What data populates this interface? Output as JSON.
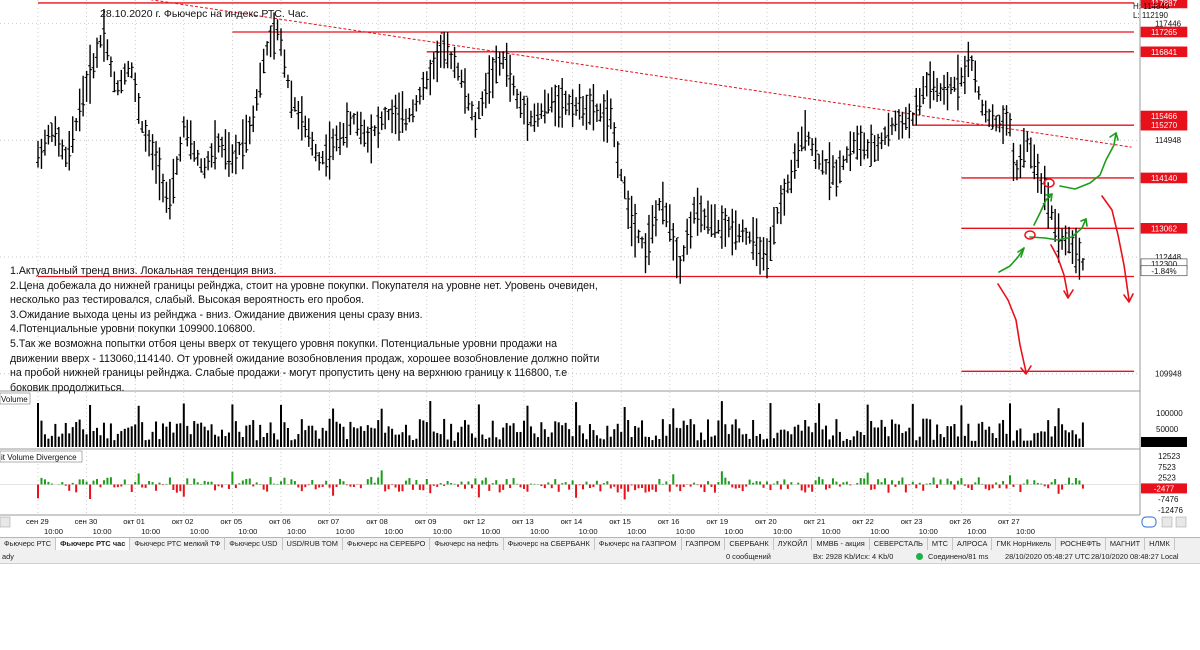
{
  "chart_title": "28.10.2020 г. Фьючерс  на индекс РТС. Час.",
  "header_values": {
    "high": "H: 114840",
    "low": "L: 112190"
  },
  "annotation_lines": [
    "1.Актуальный тренд вниз. Локальная тенденция вниз.",
    "2.Цена добежала до нижней границы рейнджа, стоит на уровне покупки. Покупателя на уровне нет. Уровень очевиден,",
    "несколько раз тестировался, слабый. Высокая вероятность его пробоя.",
    "3.Ожидание выхода цены из рейнджа - вниз. Ожидание движения цены сразу вниз.",
    "4.Потенциальные уровни покупки 109900.106800.",
    "5.Так же возможна попытки отбоя цены вверх от текущего уровня покупки. Потенциальные уровни продажи на",
    "движении вверх - 113060,114140. От уровней ожидание возобновления продаж, хорошее возобновление должно пойти",
    "на пробой нижней границы рейнджа. Слабые продажи - могут пропустить цену на верхнюю границу к 116800, т.е",
    "боковик продолжиться."
  ],
  "chart_data": {
    "type": "candlestick",
    "title": "28.10.2020 г. Фьючерс  на индекс РТС. Час.",
    "ylim": [
      109600,
      117950
    ],
    "price_axis_ticks": [
      "117446",
      "114948",
      "112448",
      "109948"
    ],
    "level_labels": [
      {
        "price": 117887,
        "label": "117887",
        "color": "#e8101a"
      },
      {
        "price": 117265,
        "label": "117265",
        "color": "#e8101a"
      },
      {
        "price": 116841,
        "label": "116841",
        "color": "#e8101a"
      },
      {
        "price": 115466,
        "label": "115466",
        "color": "#e8101a"
      },
      {
        "price": 115270,
        "label": "115270",
        "color": "#e8101a"
      },
      {
        "price": 114140,
        "label": "114140",
        "color": "#e8101a"
      },
      {
        "price": 113062,
        "label": "113062",
        "color": "#e8101a"
      },
      {
        "price": 112300,
        "label": "112300",
        "color": "#ffffff"
      },
      {
        "price": 112153,
        "label": "-1.84%",
        "color": "#ffffff"
      }
    ],
    "last_price": 112300,
    "horizontal_levels": [
      {
        "price": 117887,
        "from_day": 0
      },
      {
        "price": 117265,
        "from_day": 4
      },
      {
        "price": 116841,
        "from_day": 8
      },
      {
        "price": 115270,
        "from_day": 18
      },
      {
        "price": 114140,
        "from_day": 19
      },
      {
        "price": 113062,
        "from_day": 19
      },
      {
        "price": 112030,
        "from_day": 0
      },
      {
        "price": 110000,
        "from_day": 19
      }
    ],
    "trendline": {
      "from": [
        1.4,
        118100
      ],
      "to": [
        22.5,
        114800
      ]
    },
    "dates": [
      "сен 29",
      "сен 30",
      "окт 01",
      "окт 02",
      "окт 05",
      "окт 06",
      "окт 07",
      "окт 08",
      "окт 09",
      "окт 12",
      "окт 13",
      "окт 14",
      "окт 15",
      "окт 16",
      "окт 19",
      "окт 20",
      "окт 21",
      "окт 22",
      "окт 23",
      "окт 26",
      "окт 27"
    ],
    "time_labels": [
      "10:00",
      "10:00",
      "10:00",
      "10:00",
      "10:00",
      "10:00",
      "10:00",
      "10:00",
      "10:00",
      "10:00",
      "10:00",
      "10:00",
      "10:00",
      "10:00",
      "10:00",
      "10:00",
      "10:00",
      "10:00",
      "10:00",
      "10:00",
      "10:00"
    ],
    "price_path": [
      [
        0,
        114600
      ],
      [
        0.3,
        115200
      ],
      [
        0.6,
        114500
      ],
      [
        0.9,
        115800
      ],
      [
        1.15,
        116600
      ],
      [
        1.35,
        117300
      ],
      [
        1.6,
        116000
      ],
      [
        1.9,
        116600
      ],
      [
        2.15,
        115200
      ],
      [
        2.5,
        114300
      ],
      [
        2.7,
        113500
      ],
      [
        3.0,
        115200
      ],
      [
        3.4,
        114300
      ],
      [
        3.7,
        114900
      ],
      [
        4.0,
        114500
      ],
      [
        4.4,
        115300
      ],
      [
        4.7,
        116900
      ],
      [
        4.95,
        117300
      ],
      [
        5.2,
        115900
      ],
      [
        5.5,
        115200
      ],
      [
        5.8,
        114500
      ],
      [
        6.2,
        115000
      ],
      [
        6.5,
        115400
      ],
      [
        6.8,
        115000
      ],
      [
        7.2,
        115500
      ],
      [
        7.6,
        115400
      ],
      [
        8.0,
        116200
      ],
      [
        8.3,
        116900
      ],
      [
        8.6,
        116600
      ],
      [
        9.0,
        115300
      ],
      [
        9.3,
        116300
      ],
      [
        9.6,
        116700
      ],
      [
        9.9,
        115700
      ],
      [
        10.2,
        115400
      ],
      [
        10.6,
        115800
      ],
      [
        11.0,
        115700
      ],
      [
        11.4,
        115600
      ],
      [
        11.8,
        115400
      ],
      [
        12.0,
        114200
      ],
      [
        12.2,
        113300
      ],
      [
        12.5,
        112600
      ],
      [
        12.8,
        113600
      ],
      [
        13.0,
        113200
      ],
      [
        13.2,
        112200
      ],
      [
        13.5,
        113400
      ],
      [
        14.0,
        113100
      ],
      [
        14.5,
        113000
      ],
      [
        14.8,
        112700
      ],
      [
        15.0,
        112300
      ],
      [
        15.2,
        113300
      ],
      [
        15.5,
        114200
      ],
      [
        15.8,
        115200
      ],
      [
        16.0,
        114600
      ],
      [
        16.4,
        114200
      ],
      [
        16.8,
        114900
      ],
      [
        17.2,
        114700
      ],
      [
        17.6,
        115300
      ],
      [
        18.0,
        115400
      ],
      [
        18.3,
        116200
      ],
      [
        18.6,
        115900
      ],
      [
        19.0,
        116300
      ],
      [
        19.2,
        116700
      ],
      [
        19.4,
        115700
      ],
      [
        19.7,
        115300
      ],
      [
        20.0,
        115300
      ],
      [
        20.1,
        114200
      ],
      [
        20.35,
        114900
      ],
      [
        20.6,
        114200
      ],
      [
        20.8,
        113600
      ],
      [
        21.0,
        112900
      ],
      [
        21.3,
        112700
      ],
      [
        21.5,
        112300
      ]
    ],
    "volume_panel": {
      "title": "Volume",
      "ticks": [
        "100000",
        "50000"
      ]
    },
    "divergence_panel": {
      "title": "it Volume Divergence",
      "ticks": [
        "12523",
        "7523",
        "2523",
        "-2477",
        "-7476",
        "-12476"
      ],
      "current_label": "-2477"
    },
    "hand_drawn": {
      "green_scenario": "bounce up to 113062 and 114140",
      "red_scenario": "breakdown below range toward 110000"
    }
  },
  "tabs": [
    "Фьючерс РТС",
    "Фьючерс РТС час",
    "Фьючерс РТС мелкий ТФ",
    "Фьючерс USD",
    "USD/RUB TOM",
    "Фьючерс на СЕРЕБРО",
    "Фьючерс на нефть",
    "Фьючерс на СБЕРБАНК",
    "Фьючерс на ГАЗПРОМ",
    "ГАЗПРОМ",
    "СБЕРБАНК",
    "ЛУКОЙЛ",
    "ММВБ - акция",
    "СЕВЕРСТАЛЬ",
    "МТС",
    "АЛРОСА",
    "ГМК НорНикель",
    "РОСНЕФТЬ",
    "МАГНИТ",
    "НЛМК"
  ],
  "status": {
    "ready": "ady",
    "messages": "0 сообщений",
    "traffic": "Вх: 2928 Kb/Исх: 4 Kb/0",
    "connection": "Соединено/81 ms",
    "utc_time": "28/10/2020 05:48:27 UTC",
    "local_time": "28/10/2020 08:48:27 Local"
  },
  "colors": {
    "level": "#e8101a",
    "bull": "#1a9d1a",
    "bear": "#e8101a",
    "candle": "#000000",
    "grid": "#b8b8b8"
  }
}
